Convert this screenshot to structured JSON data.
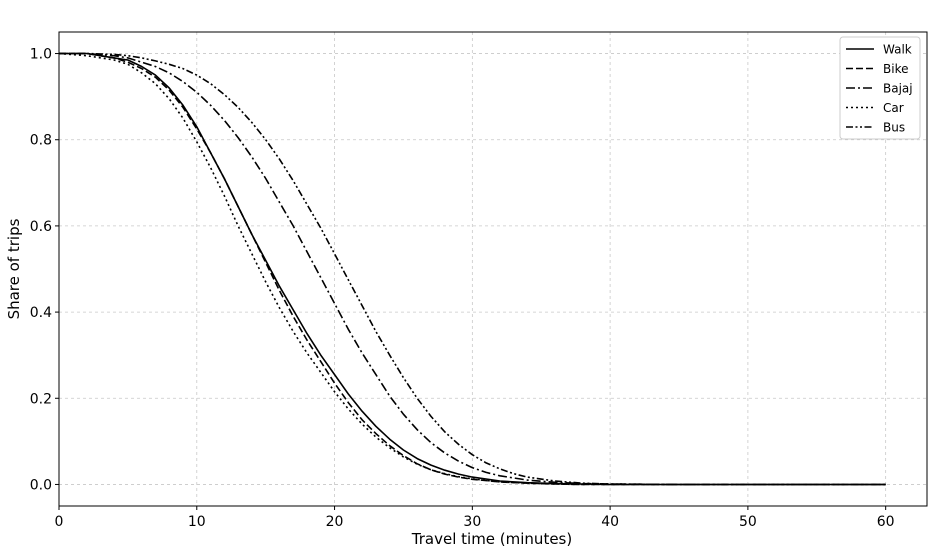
{
  "chart_data": {
    "type": "line",
    "title": "",
    "xlabel": "Travel time (minutes)",
    "ylabel": "Share of trips",
    "xlim": [
      0,
      63
    ],
    "ylim": [
      -0.05,
      1.05
    ],
    "xticks": [
      0,
      10,
      20,
      30,
      40,
      50,
      60
    ],
    "yticks": [
      0.0,
      0.2,
      0.4,
      0.6,
      0.8,
      1.0
    ],
    "ytick_format": 1,
    "grid": true,
    "legend_position": "top-right",
    "line_color": "#000000",
    "series": [
      {
        "name": "Walk",
        "dash": "solid",
        "x": [
          0,
          2,
          4,
          5,
          6,
          7,
          8,
          9,
          10,
          11,
          12,
          13,
          14,
          15,
          16,
          17,
          18,
          19,
          20,
          21,
          22,
          23,
          24,
          25,
          26,
          27,
          28,
          29,
          30,
          32,
          34,
          36,
          38,
          40,
          45,
          50,
          55,
          60
        ],
        "y": [
          1.0,
          1.0,
          0.99,
          0.985,
          0.97,
          0.95,
          0.92,
          0.88,
          0.83,
          0.77,
          0.71,
          0.645,
          0.58,
          0.52,
          0.46,
          0.405,
          0.35,
          0.3,
          0.255,
          0.21,
          0.17,
          0.135,
          0.105,
          0.08,
          0.06,
          0.045,
          0.033,
          0.024,
          0.017,
          0.008,
          0.004,
          0.002,
          0.001,
          0.0,
          0.0,
          0.0,
          0.0,
          0.0
        ]
      },
      {
        "name": "Bike",
        "dash": "dashed",
        "x": [
          0,
          2,
          4,
          5,
          6,
          7,
          8,
          9,
          10,
          11,
          12,
          13,
          14,
          15,
          16,
          17,
          18,
          19,
          20,
          21,
          22,
          23,
          24,
          25,
          26,
          27,
          28,
          29,
          30,
          32,
          34,
          36,
          38,
          40,
          45,
          50,
          55,
          60
        ],
        "y": [
          1.0,
          1.0,
          0.99,
          0.98,
          0.965,
          0.945,
          0.915,
          0.875,
          0.825,
          0.77,
          0.71,
          0.645,
          0.58,
          0.515,
          0.45,
          0.39,
          0.335,
          0.285,
          0.235,
          0.19,
          0.15,
          0.118,
          0.09,
          0.067,
          0.048,
          0.034,
          0.024,
          0.017,
          0.012,
          0.006,
          0.003,
          0.001,
          0.0,
          0.0,
          0.0,
          0.0,
          0.0,
          0.0
        ]
      },
      {
        "name": "Bajaj",
        "dash": "dashdot",
        "x": [
          0,
          2,
          4,
          5,
          6,
          7,
          8,
          9,
          10,
          11,
          12,
          13,
          14,
          15,
          16,
          17,
          18,
          19,
          20,
          21,
          22,
          23,
          24,
          25,
          26,
          27,
          28,
          29,
          30,
          31,
          32,
          34,
          36,
          38,
          40,
          45,
          50,
          55,
          60
        ],
        "y": [
          1.0,
          1.0,
          0.995,
          0.99,
          0.98,
          0.97,
          0.955,
          0.935,
          0.91,
          0.88,
          0.845,
          0.805,
          0.76,
          0.71,
          0.655,
          0.6,
          0.54,
          0.48,
          0.42,
          0.36,
          0.305,
          0.255,
          0.205,
          0.163,
          0.127,
          0.097,
          0.073,
          0.054,
          0.039,
          0.028,
          0.02,
          0.01,
          0.005,
          0.002,
          0.001,
          0.0,
          0.0,
          0.0,
          0.0
        ]
      },
      {
        "name": "Car",
        "dash": "dotted",
        "x": [
          0,
          2,
          4,
          5,
          6,
          7,
          8,
          9,
          10,
          11,
          12,
          13,
          14,
          15,
          16,
          17,
          18,
          19,
          20,
          21,
          22,
          23,
          24,
          25,
          26,
          27,
          28,
          29,
          30,
          32,
          34,
          36,
          38,
          40,
          45,
          50,
          55,
          60
        ],
        "y": [
          1.0,
          0.995,
          0.985,
          0.975,
          0.955,
          0.93,
          0.895,
          0.85,
          0.795,
          0.735,
          0.67,
          0.6,
          0.535,
          0.47,
          0.41,
          0.355,
          0.305,
          0.26,
          0.215,
          0.175,
          0.14,
          0.11,
          0.085,
          0.064,
          0.047,
          0.034,
          0.025,
          0.018,
          0.013,
          0.006,
          0.003,
          0.001,
          0.0,
          0.0,
          0.0,
          0.0,
          0.0,
          0.0
        ]
      },
      {
        "name": "Bus",
        "dash": "dashdotdot",
        "x": [
          0,
          2,
          4,
          5,
          6,
          7,
          8,
          9,
          10,
          11,
          12,
          13,
          14,
          15,
          16,
          17,
          18,
          19,
          20,
          21,
          22,
          23,
          24,
          25,
          26,
          27,
          28,
          29,
          30,
          31,
          32,
          33,
          34,
          36,
          38,
          40,
          45,
          50,
          55,
          60
        ],
        "y": [
          1.0,
          1.0,
          0.998,
          0.995,
          0.99,
          0.983,
          0.975,
          0.965,
          0.95,
          0.93,
          0.905,
          0.875,
          0.84,
          0.8,
          0.755,
          0.705,
          0.65,
          0.595,
          0.535,
          0.475,
          0.415,
          0.355,
          0.3,
          0.248,
          0.2,
          0.158,
          0.122,
          0.093,
          0.069,
          0.05,
          0.036,
          0.025,
          0.017,
          0.008,
          0.003,
          0.001,
          0.0,
          0.0,
          0.0,
          0.0
        ]
      }
    ]
  }
}
